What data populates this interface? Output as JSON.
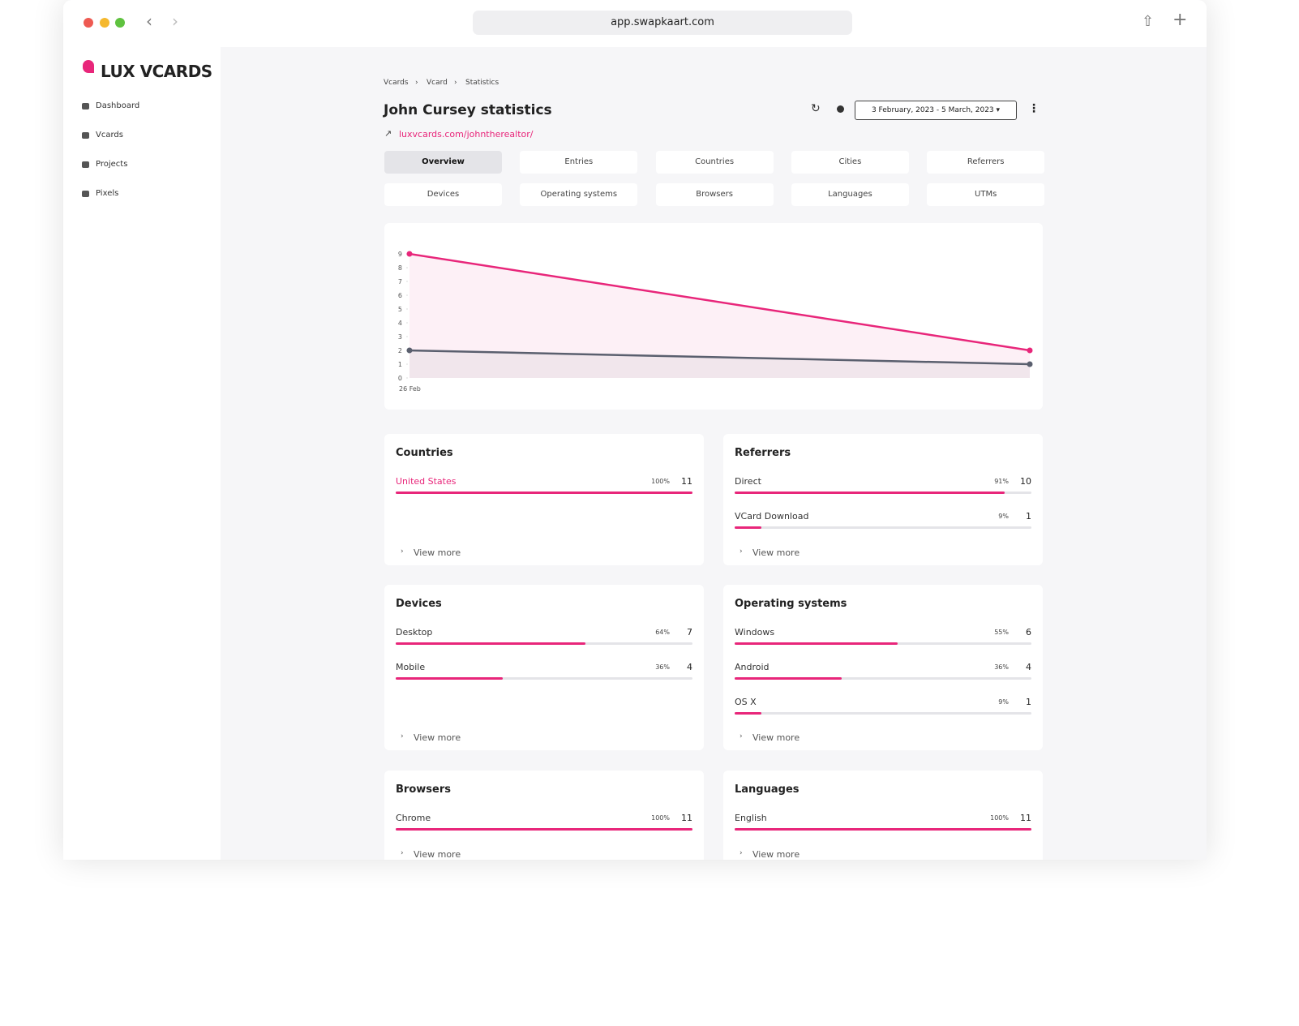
{
  "browser": {
    "url": "app.swapkaart.com"
  },
  "sidebar": {
    "logo": "LUX VCARDS",
    "nav": [
      "Dashboard",
      "Vcards",
      "Projects",
      "Pixels"
    ]
  },
  "breadcrumb": [
    "Vcards",
    "Vcard",
    "Statistics"
  ],
  "header": {
    "title": "John Cursey statistics",
    "link": "luxvcards.com/johntherealtor/",
    "date_range": "3 February, 2023 - 5 March, 2023"
  },
  "tabs": [
    "Overview",
    "Entries",
    "Countries",
    "Cities",
    "Referrers",
    "Devices",
    "Operating systems",
    "Browsers",
    "Languages",
    "UTMs"
  ],
  "active_tab": 0,
  "chart": {
    "type": "line",
    "x": [
      "26 Feb",
      null
    ],
    "series": [
      {
        "color": "#e8267a",
        "values": [
          9,
          2
        ]
      },
      {
        "color": "#5a5f6e",
        "values": [
          2,
          1
        ]
      }
    ],
    "ylim": [
      0,
      9
    ],
    "yticks": [
      0,
      1,
      2,
      3,
      4,
      5,
      6,
      7,
      8,
      9
    ]
  },
  "panels": [
    {
      "title": "Countries",
      "more": "View more",
      "items": [
        {
          "name": "United States",
          "share": {
            "value": 100,
            "label": "100%"
          },
          "count": 11
        }
      ]
    },
    {
      "title": "Referrers",
      "more": "View more",
      "items": [
        {
          "name": "Direct",
          "share": {
            "value": 91,
            "label": "91%"
          },
          "count": 10
        },
        {
          "name": "VCard Download",
          "share": {
            "value": 9,
            "label": "9%"
          },
          "count": 1
        }
      ]
    },
    {
      "title": "Devices",
      "more": "View more",
      "items": [
        {
          "name": "Desktop",
          "share": {
            "value": 64,
            "label": "64%"
          },
          "count": 7
        },
        {
          "name": "Mobile",
          "share": {
            "value": 36,
            "label": "36%"
          },
          "count": 4
        }
      ]
    },
    {
      "title": "Operating systems",
      "more": "View more",
      "items": [
        {
          "name": "Windows",
          "share": {
            "value": 55,
            "label": "55%"
          },
          "count": 6
        },
        {
          "name": "Android",
          "share": {
            "value": 36,
            "label": "36%"
          },
          "count": 4
        },
        {
          "name": "OS X",
          "share": {
            "value": 9,
            "label": "9%"
          },
          "count": 1
        }
      ]
    },
    {
      "title": "Browsers",
      "more": "View more",
      "items": [
        {
          "name": "Chrome",
          "share": {
            "value": 100,
            "label": "100%"
          },
          "count": 11
        }
      ]
    },
    {
      "title": "Languages",
      "more": "View more",
      "items": [
        {
          "name": "English",
          "share": {
            "value": 100,
            "label": "100%"
          },
          "count": 11
        }
      ]
    }
  ]
}
